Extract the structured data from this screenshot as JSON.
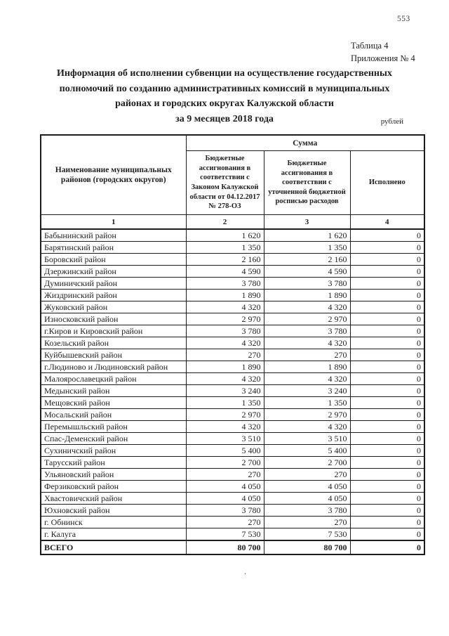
{
  "page": {
    "number": "553",
    "table_label": "Таблица 4",
    "appendix_label": "Приложения № 4",
    "title_line1": "Информация об исполнении субвенции на осуществление государственных",
    "title_line2": "полномочий по созданию административных комиссий в муниципальных",
    "title_line3": "районах и городских округах Калужской области",
    "title_line4": "за 9 месяцев 2018 года",
    "units_label": "рублей",
    "footer_dot": "."
  },
  "table": {
    "name_col_header": "Наименование муниципальных районов (городских округов)",
    "sum_header": "Сумма",
    "law_col_header": "Бюджетные ассигнования в соответствии с Законом Калужской области от 04.12.2017 № 278-ОЗ",
    "updated_col_header": "Бюджетные ассигнования в соответствии с уточненной бюджетной росписью расходов",
    "executed_col_header": "Исполнено",
    "col_numbers": [
      "1",
      "2",
      "3",
      "4"
    ],
    "rows": [
      {
        "name": "Бабынинский район",
        "law": "1 620",
        "updated": "1 620",
        "executed": "0"
      },
      {
        "name": "Барятинский район",
        "law": "1 350",
        "updated": "1 350",
        "executed": "0"
      },
      {
        "name": "Боровский район",
        "law": "2 160",
        "updated": "2 160",
        "executed": "0"
      },
      {
        "name": "Дзержинский район",
        "law": "4 590",
        "updated": "4 590",
        "executed": "0"
      },
      {
        "name": "Думиничский район",
        "law": "3 780",
        "updated": "3 780",
        "executed": "0"
      },
      {
        "name": "Жиздринский район",
        "law": "1 890",
        "updated": "1 890",
        "executed": "0"
      },
      {
        "name": "Жуковский район",
        "law": "4 320",
        "updated": "4 320",
        "executed": "0"
      },
      {
        "name": "Износковский район",
        "law": "2 970",
        "updated": "2 970",
        "executed": "0"
      },
      {
        "name": "г.Киров и Кировский район",
        "law": "3 780",
        "updated": "3 780",
        "executed": "0"
      },
      {
        "name": "Козельский район",
        "law": "4 320",
        "updated": "4 320",
        "executed": "0"
      },
      {
        "name": "Куйбышевский район",
        "law": "270",
        "updated": "270",
        "executed": "0"
      },
      {
        "name": "г.Людиново и Людиновский район",
        "law": "1 890",
        "updated": "1 890",
        "executed": "0"
      },
      {
        "name": "Малоярославецкий район",
        "law": "4 320",
        "updated": "4 320",
        "executed": "0"
      },
      {
        "name": "Медынский район",
        "law": "3 240",
        "updated": "3 240",
        "executed": "0"
      },
      {
        "name": "Мещовский район",
        "law": "1 350",
        "updated": "1 350",
        "executed": "0"
      },
      {
        "name": "Мосальский район",
        "law": "2 970",
        "updated": "2 970",
        "executed": "0"
      },
      {
        "name": "Перемышльский район",
        "law": "4 320",
        "updated": "4 320",
        "executed": "0"
      },
      {
        "name": "Спас-Деменский район",
        "law": "3 510",
        "updated": "3 510",
        "executed": "0"
      },
      {
        "name": "Сухиничский район",
        "law": "5 400",
        "updated": "5 400",
        "executed": "0"
      },
      {
        "name": "Тарусский район",
        "law": "2 700",
        "updated": "2 700",
        "executed": "0"
      },
      {
        "name": "Ульяновский район",
        "law": "270",
        "updated": "270",
        "executed": "0"
      },
      {
        "name": "Ферзиковский район",
        "law": "4 050",
        "updated": "4 050",
        "executed": "0"
      },
      {
        "name": "Хвастовичский район",
        "law": "4 050",
        "updated": "4 050",
        "executed": "0"
      },
      {
        "name": "Юхновский район",
        "law": "3 780",
        "updated": "3 780",
        "executed": "0"
      },
      {
        "name": "г. Обнинск",
        "law": "270",
        "updated": "270",
        "executed": "0"
      },
      {
        "name": "г. Калуга",
        "law": "7 530",
        "updated": "7 530",
        "executed": "0"
      }
    ],
    "total": {
      "name": "ВСЕГО",
      "law": "80 700",
      "updated": "80 700",
      "executed": "0"
    }
  }
}
